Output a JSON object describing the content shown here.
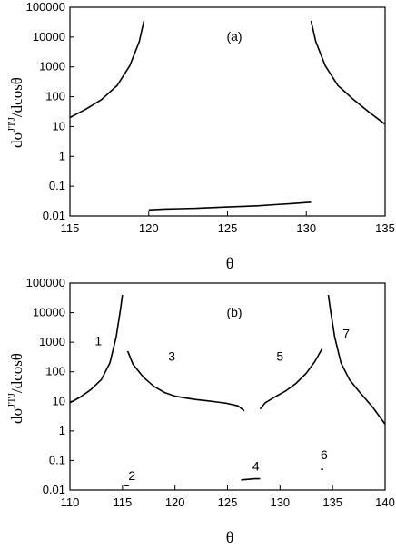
{
  "chart_data": [
    {
      "type": "line",
      "panel_label": "(a)",
      "xlabel": "θ",
      "ylabel": "dσ^{J'I'J}/dcosθ",
      "xlim": [
        115,
        135
      ],
      "ylim": [
        0.01,
        100000
      ],
      "yscale": "log",
      "x_ticks": [
        115,
        120,
        125,
        130,
        135
      ],
      "y_ticks": [
        "100000",
        "10000",
        "1000",
        "100",
        "10",
        "1",
        "0.1",
        "0.01"
      ],
      "grid": false,
      "series": [
        {
          "x": [
            115,
            116,
            117,
            118,
            118.8,
            119.4,
            119.7
          ],
          "y": [
            20,
            38,
            80,
            240,
            1100,
            7000,
            35000
          ]
        },
        {
          "x": [
            130.3,
            130.6,
            131.2,
            132,
            133,
            134,
            135
          ],
          "y": [
            35000,
            7000,
            1100,
            240,
            80,
            30,
            12
          ]
        },
        {
          "x": [
            120,
            121,
            122,
            123,
            124,
            125,
            126,
            127,
            128,
            129,
            130.3
          ],
          "y": [
            0.016,
            0.017,
            0.0175,
            0.018,
            0.019,
            0.02,
            0.021,
            0.022,
            0.024,
            0.026,
            0.029
          ]
        }
      ]
    },
    {
      "type": "line",
      "panel_label": "(b)",
      "xlabel": "θ",
      "ylabel": "dσ^{J'I'J}/dcosθ",
      "xlim": [
        110,
        140
      ],
      "ylim": [
        0.01,
        100000
      ],
      "yscale": "log",
      "x_ticks": [
        110,
        115,
        120,
        125,
        130,
        135,
        140
      ],
      "y_ticks": [
        "100000",
        "10000",
        "1000",
        "100",
        "10",
        "1",
        "0.1",
        "0.01"
      ],
      "grid": false,
      "series": [
        {
          "label": "1",
          "x": [
            110,
            111,
            112,
            113,
            113.8,
            114.4,
            114.8,
            115
          ],
          "y": [
            9,
            14,
            25,
            55,
            200,
            1500,
            12000,
            40000
          ]
        },
        {
          "label": "2",
          "x": [
            115.2,
            115.6
          ],
          "y": [
            0.014,
            0.014
          ]
        },
        {
          "label": "3",
          "x": [
            115.5,
            116,
            117,
            118,
            119,
            120,
            121,
            122,
            123,
            124,
            125,
            126,
            126.6
          ],
          "y": [
            500,
            180,
            65,
            32,
            20,
            15,
            13,
            11.5,
            10.5,
            9.5,
            8.5,
            7,
            4.8
          ]
        },
        {
          "label": "4",
          "x": [
            126.3,
            127,
            127.6,
            128.1
          ],
          "y": [
            0.022,
            0.023,
            0.024,
            0.024
          ]
        },
        {
          "label": "5",
          "x": [
            128.1,
            128.6,
            129.5,
            130.5,
            131.5,
            132.5,
            133.3,
            134
          ],
          "y": [
            5.5,
            9,
            14,
            22,
            40,
            90,
            220,
            600
          ]
        },
        {
          "label": "6",
          "x": [
            133.9,
            134.1
          ],
          "y": [
            0.05,
            0.05
          ]
        },
        {
          "label": "7",
          "x": [
            134.6,
            134.8,
            135.2,
            135.8,
            136.6,
            137.6,
            138.8,
            140
          ],
          "y": [
            40000,
            12000,
            1500,
            200,
            55,
            20,
            6.5,
            1.7
          ]
        }
      ]
    }
  ]
}
